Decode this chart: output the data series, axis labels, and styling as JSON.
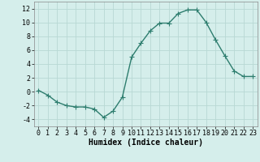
{
  "x": [
    0,
    1,
    2,
    3,
    4,
    5,
    6,
    7,
    8,
    9,
    10,
    11,
    12,
    13,
    14,
    15,
    16,
    17,
    18,
    19,
    20,
    21,
    22,
    23
  ],
  "y": [
    0.2,
    -0.5,
    -1.5,
    -2.0,
    -2.2,
    -2.2,
    -2.5,
    -3.7,
    -2.8,
    -0.8,
    5.0,
    7.0,
    8.8,
    9.9,
    9.9,
    11.3,
    11.8,
    11.8,
    10.0,
    7.5,
    5.2,
    3.0,
    2.2,
    2.2
  ],
  "line_color": "#2d7d6e",
  "marker": "+",
  "markersize": 4,
  "linewidth": 1.0,
  "bg_color": "#d5eeeb",
  "grid_color": "#b8d8d4",
  "xlabel": "Humidex (Indice chaleur)",
  "xlabel_fontsize": 7,
  "xlabel_fontweight": "bold",
  "tick_fontsize": 6,
  "ylim": [
    -5,
    13
  ],
  "xlim": [
    -0.5,
    23.5
  ],
  "yticks": [
    -4,
    -2,
    0,
    2,
    4,
    6,
    8,
    10,
    12
  ],
  "xticks": [
    0,
    1,
    2,
    3,
    4,
    5,
    6,
    7,
    8,
    9,
    10,
    11,
    12,
    13,
    14,
    15,
    16,
    17,
    18,
    19,
    20,
    21,
    22,
    23
  ]
}
